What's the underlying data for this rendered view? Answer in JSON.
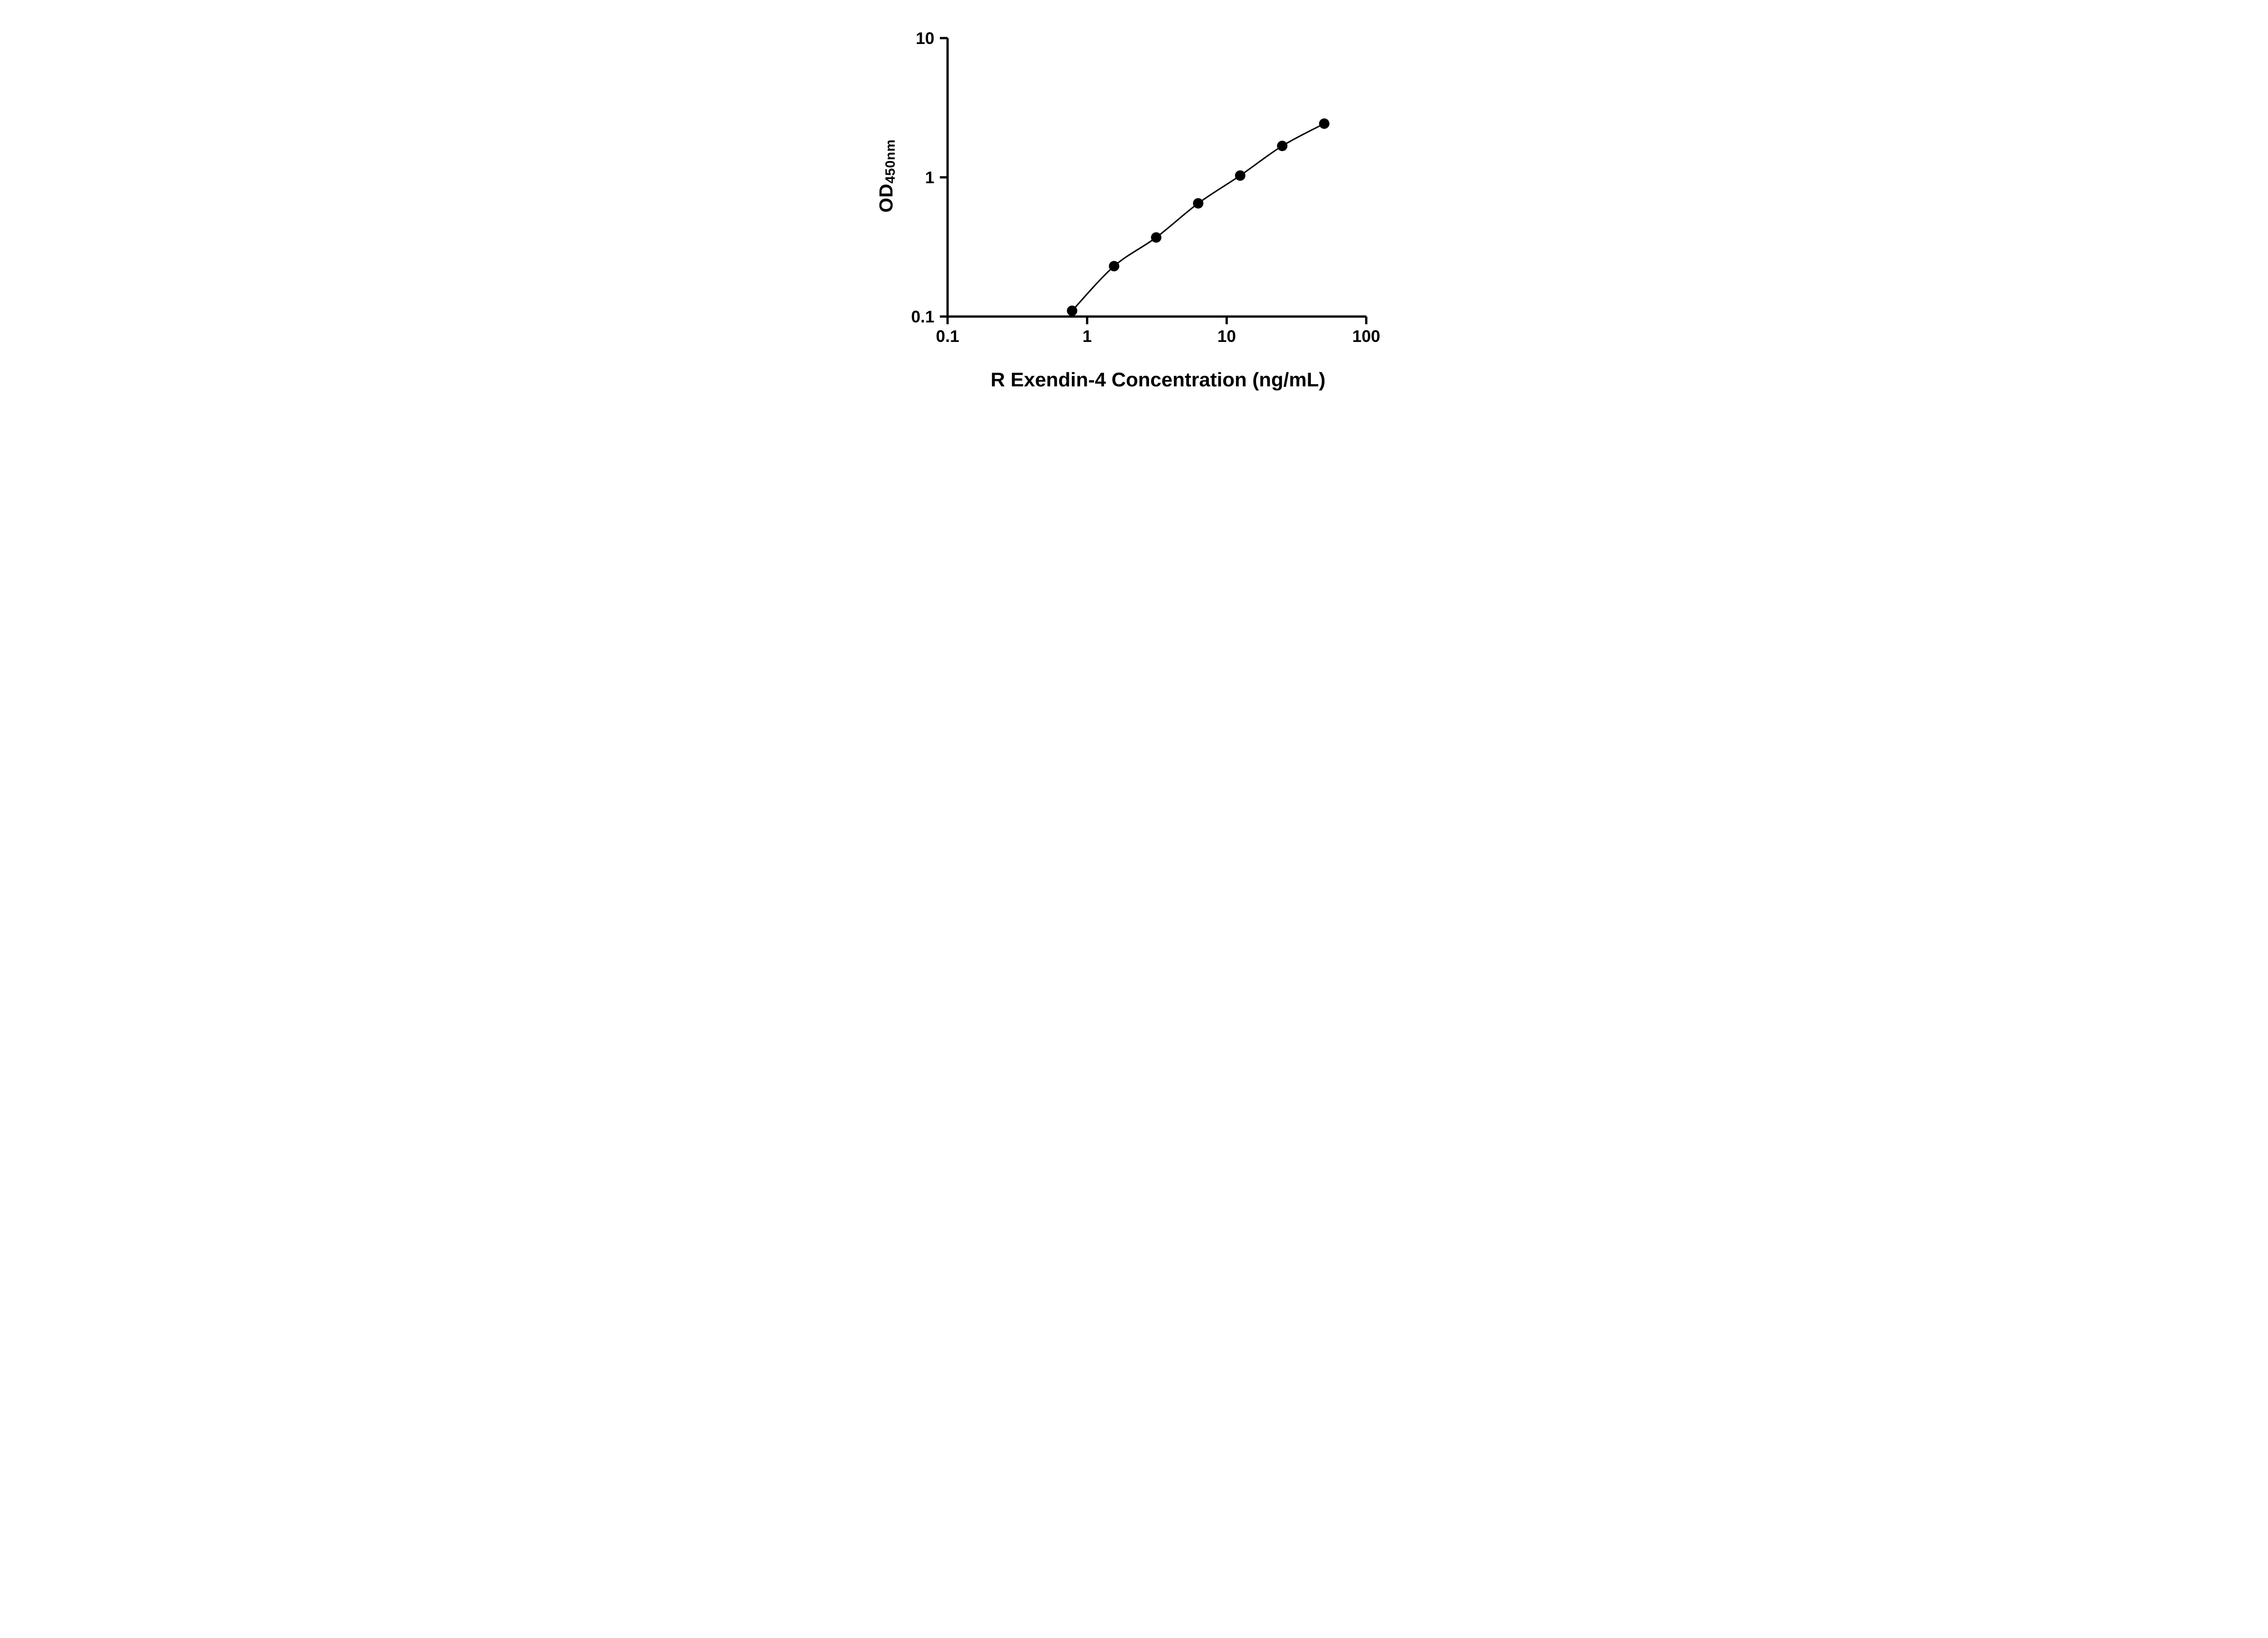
{
  "chart_data": {
    "type": "scatter",
    "title": "",
    "xlabel": "R Exendin-4 Concentration (ng/mL)",
    "ylabel": "OD450nm",
    "ylabel_main": "OD",
    "ylabel_sub": "450nm",
    "x_scale": "log",
    "y_scale": "log",
    "xlim": [
      0.1,
      100
    ],
    "ylim": [
      0.1,
      10
    ],
    "x_ticks": [
      0.1,
      1,
      10,
      100
    ],
    "x_tick_labels": [
      "0.1",
      "1",
      "10",
      "100"
    ],
    "y_ticks": [
      0.1,
      1,
      10
    ],
    "y_tick_labels": [
      "0.1",
      "1",
      "10"
    ],
    "x": [
      0.78,
      1.56,
      3.125,
      6.25,
      12.5,
      25,
      50
    ],
    "y": [
      0.11,
      0.23,
      0.37,
      0.65,
      1.03,
      1.68,
      2.43
    ],
    "marker": {
      "shape": "circle",
      "color": "#000000",
      "radius": 11.5
    },
    "line_color": "#000000",
    "grid": false,
    "legend": false
  },
  "colors": {
    "background": "#ffffff",
    "axis": "#000000",
    "text": "#000000"
  }
}
